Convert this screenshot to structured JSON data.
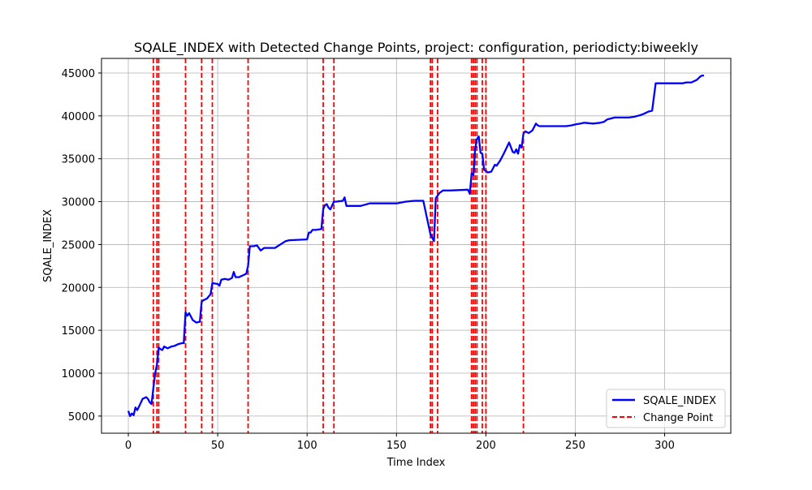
{
  "chart_data": {
    "type": "line",
    "title": "SQALE_INDEX with Detected Change Points, project: configuration, periodicty:biweekly",
    "xlabel": "Time Index",
    "ylabel": "SQALE_INDEX",
    "xlim": [
      -15,
      337
    ],
    "ylim": [
      3000,
      46700
    ],
    "xticks": [
      0,
      50,
      100,
      150,
      200,
      250,
      300
    ],
    "yticks": [
      5000,
      10000,
      15000,
      20000,
      25000,
      30000,
      35000,
      40000,
      45000
    ],
    "grid": true,
    "legend_position": "lower right",
    "series": [
      {
        "name": "SQALE_INDEX",
        "color": "#0000ff",
        "x": [
          0,
          1,
          2,
          3,
          4,
          5,
          6,
          8,
          10,
          11,
          12,
          13,
          14,
          15,
          16,
          17,
          18,
          19,
          20,
          22,
          24,
          26,
          28,
          30,
          31,
          32,
          33,
          34,
          36,
          38,
          40,
          41,
          42,
          44,
          46,
          47,
          50,
          51,
          52,
          54,
          56,
          58,
          59,
          60,
          62,
          64,
          66,
          67,
          68,
          70,
          72,
          74,
          76,
          78,
          80,
          82,
          88,
          90,
          100,
          101,
          102,
          103,
          105,
          108,
          109,
          110,
          111,
          112,
          113,
          115,
          116,
          120,
          121,
          122,
          130,
          135,
          150,
          155,
          160,
          162,
          165,
          169,
          170,
          171,
          172,
          173,
          174,
          176,
          180,
          190,
          191,
          192,
          193,
          194,
          195,
          196,
          197,
          198,
          199,
          200,
          201,
          203,
          205,
          206,
          208,
          210,
          213,
          215,
          216,
          217,
          218,
          219,
          220,
          221,
          222,
          224,
          226,
          227,
          228,
          229,
          230,
          235,
          245,
          248,
          250,
          253,
          255,
          260,
          264,
          266,
          268,
          272,
          275,
          280,
          283,
          285,
          288,
          291,
          293,
          295,
          298,
          300,
          305,
          310,
          312,
          315,
          316,
          318,
          320,
          321,
          322
        ],
        "values": [
          5600,
          5000,
          5300,
          5100,
          6000,
          5700,
          6100,
          7000,
          7200,
          7000,
          6600,
          6400,
          8200,
          10000,
          11000,
          13000,
          12800,
          12700,
          13100,
          12900,
          13100,
          13200,
          13400,
          13500,
          13500,
          17100,
          16700,
          17000,
          16200,
          15900,
          16000,
          18300,
          18500,
          18700,
          19200,
          20500,
          20400,
          20200,
          20900,
          21000,
          20900,
          21100,
          21800,
          21200,
          21200,
          21400,
          21600,
          22500,
          24800,
          24800,
          24900,
          24300,
          24600,
          24600,
          24600,
          24600,
          25400,
          25500,
          25600,
          26400,
          26400,
          26700,
          26700,
          26800,
          29100,
          29600,
          29700,
          29300,
          29100,
          30000,
          30000,
          30100,
          30500,
          29500,
          29500,
          29800,
          29800,
          30000,
          30100,
          30100,
          30100,
          26200,
          25800,
          25400,
          30400,
          30700,
          31000,
          31300,
          31300,
          31400,
          30900,
          33300,
          33100,
          36200,
          37300,
          37600,
          35700,
          35600,
          33700,
          33600,
          33400,
          33500,
          34300,
          34200,
          34800,
          35600,
          36900,
          35800,
          35700,
          36100,
          35600,
          36600,
          36300,
          37900,
          38200,
          38000,
          38300,
          38700,
          39100,
          38900,
          38800,
          38800,
          38800,
          38900,
          39000,
          39100,
          39200,
          39100,
          39200,
          39300,
          39600,
          39800,
          39800,
          39800,
          39900,
          40000,
          40200,
          40500,
          40600,
          43800,
          43800,
          43800,
          43800,
          43800,
          43900,
          43900,
          44000,
          44200,
          44600,
          44700,
          44700
        ]
      }
    ],
    "change_points": {
      "name": "Change Point",
      "color": "#ff0000",
      "x": [
        14,
        16,
        17,
        32,
        41,
        47,
        67,
        109,
        115,
        169,
        170,
        173,
        192,
        193,
        194,
        195,
        198,
        200,
        221
      ]
    }
  }
}
